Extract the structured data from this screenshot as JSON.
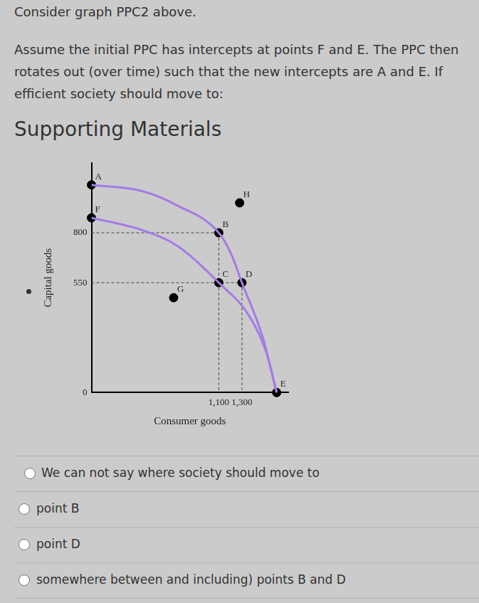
{
  "intro": "Consider graph PPC2 above.",
  "question": "Assume the initial PPC has intercepts at points F and E. The PPC then rotates out (over time) such that the new intercepts are A and E. If efficient society should move to:",
  "heading": "Supporting Materials",
  "options": [
    "We can not say where society should move to",
    "point B",
    "point D",
    "somewhere between and including) points B and D"
  ],
  "chart_data": {
    "type": "line",
    "x_label": "Consumer goods",
    "y_label": "Capital goods",
    "xlim": [
      0,
      1700
    ],
    "ylim": [
      0,
      1150
    ],
    "xticks": [
      {
        "value": 1100,
        "label": "1,100"
      },
      {
        "value": 1300,
        "label": "1,300"
      }
    ],
    "yticks": [
      0,
      550,
      800
    ],
    "grid": false,
    "series": [
      {
        "color": "#a47be6",
        "x": [
          0,
          430,
          740,
          1100,
          1360,
          1510,
          1600
        ],
        "values": [
          875,
          815,
          735,
          550,
          386,
          202,
          0
        ]
      },
      {
        "color": "#a47be6",
        "x": [
          0,
          430,
          740,
          1100,
          1210,
          1300,
          1480,
          1600
        ],
        "values": [
          1040,
          1010,
          937,
          800,
          690,
          550,
          276,
          0
        ]
      }
    ],
    "points": [
      {
        "label": "A",
        "x": 0,
        "y": 1040
      },
      {
        "label": "F",
        "x": 0,
        "y": 875
      },
      {
        "label": "B",
        "x": 1100,
        "y": 800
      },
      {
        "label": "C",
        "x": 1100,
        "y": 550
      },
      {
        "label": "D",
        "x": 1300,
        "y": 550
      },
      {
        "label": "H",
        "x": 1280,
        "y": 950
      },
      {
        "label": "G",
        "x": 710,
        "y": 475
      },
      {
        "label": "E",
        "x": 1600,
        "y": 0
      }
    ],
    "guides": [
      {
        "x": 1100,
        "y": 800
      },
      {
        "x": 1300,
        "y": 550
      }
    ]
  }
}
